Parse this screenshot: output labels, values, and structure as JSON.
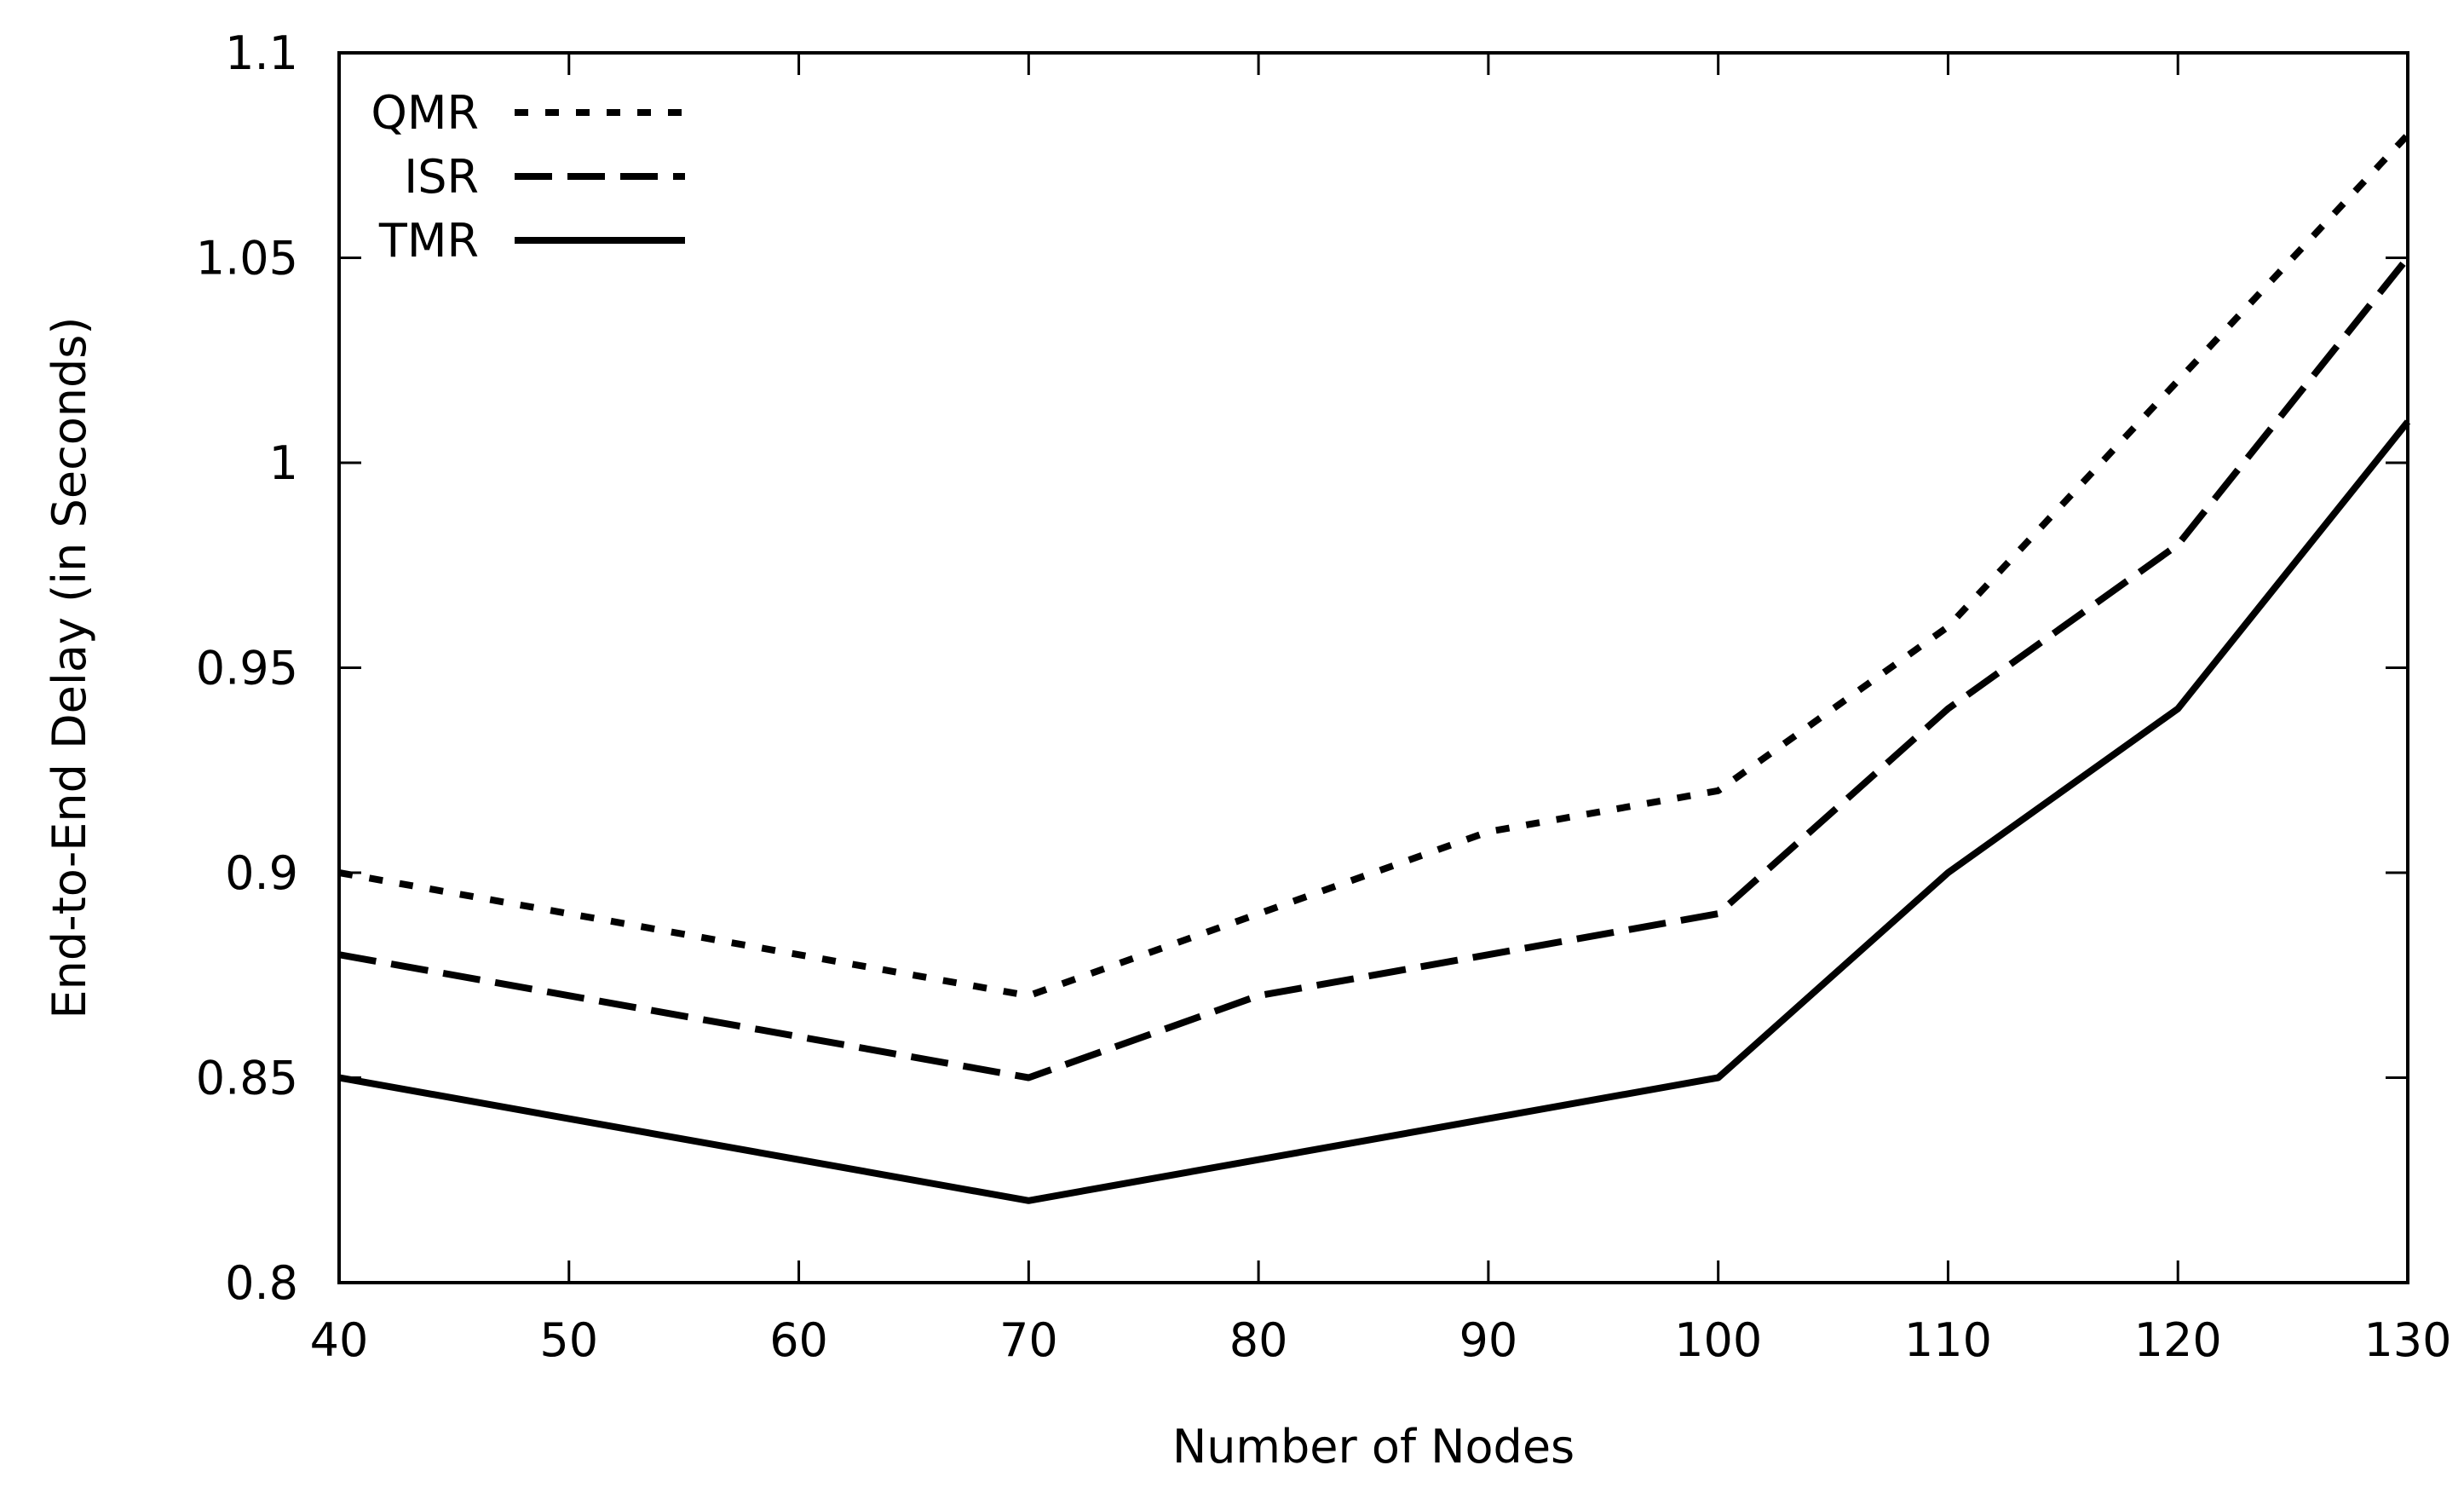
{
  "chart_data": {
    "type": "line",
    "title": "",
    "xlabel": "Number of Nodes",
    "ylabel": "End-to-End Delay (in Seconds)",
    "xlim": [
      40,
      130
    ],
    "ylim": [
      0.8,
      1.1
    ],
    "x_ticks": [
      40,
      50,
      60,
      70,
      80,
      90,
      100,
      110,
      120,
      130
    ],
    "x_tick_labels": [
      "40",
      "50",
      "60",
      "70",
      "80",
      "90",
      "100",
      "110",
      "120",
      "130"
    ],
    "y_ticks": [
      0.8,
      0.85,
      0.9,
      0.95,
      1.0,
      1.05,
      1.1
    ],
    "y_tick_labels": [
      "0.8",
      "0.85",
      "0.9",
      "0.95",
      "1",
      "1.05",
      "1.1"
    ],
    "grid": false,
    "legend_position": "top-left",
    "series": [
      {
        "name": "QMR",
        "style": "dotted",
        "color": "#000000",
        "x": [
          40,
          70,
          80,
          90,
          100,
          110,
          120,
          130
        ],
        "y": [
          0.9,
          0.87,
          0.89,
          0.91,
          0.92,
          0.96,
          1.02,
          1.08
        ]
      },
      {
        "name": "ISR",
        "style": "dashed",
        "color": "#000000",
        "x": [
          40,
          70,
          80,
          90,
          100,
          110,
          120,
          130
        ],
        "y": [
          0.88,
          0.85,
          0.87,
          0.88,
          0.89,
          0.94,
          0.98,
          1.05
        ]
      },
      {
        "name": "TMR",
        "style": "solid",
        "color": "#000000",
        "x": [
          40,
          70,
          80,
          90,
          100,
          110,
          120,
          130
        ],
        "y": [
          0.85,
          0.82,
          0.83,
          0.84,
          0.85,
          0.9,
          0.94,
          1.01
        ]
      }
    ]
  }
}
